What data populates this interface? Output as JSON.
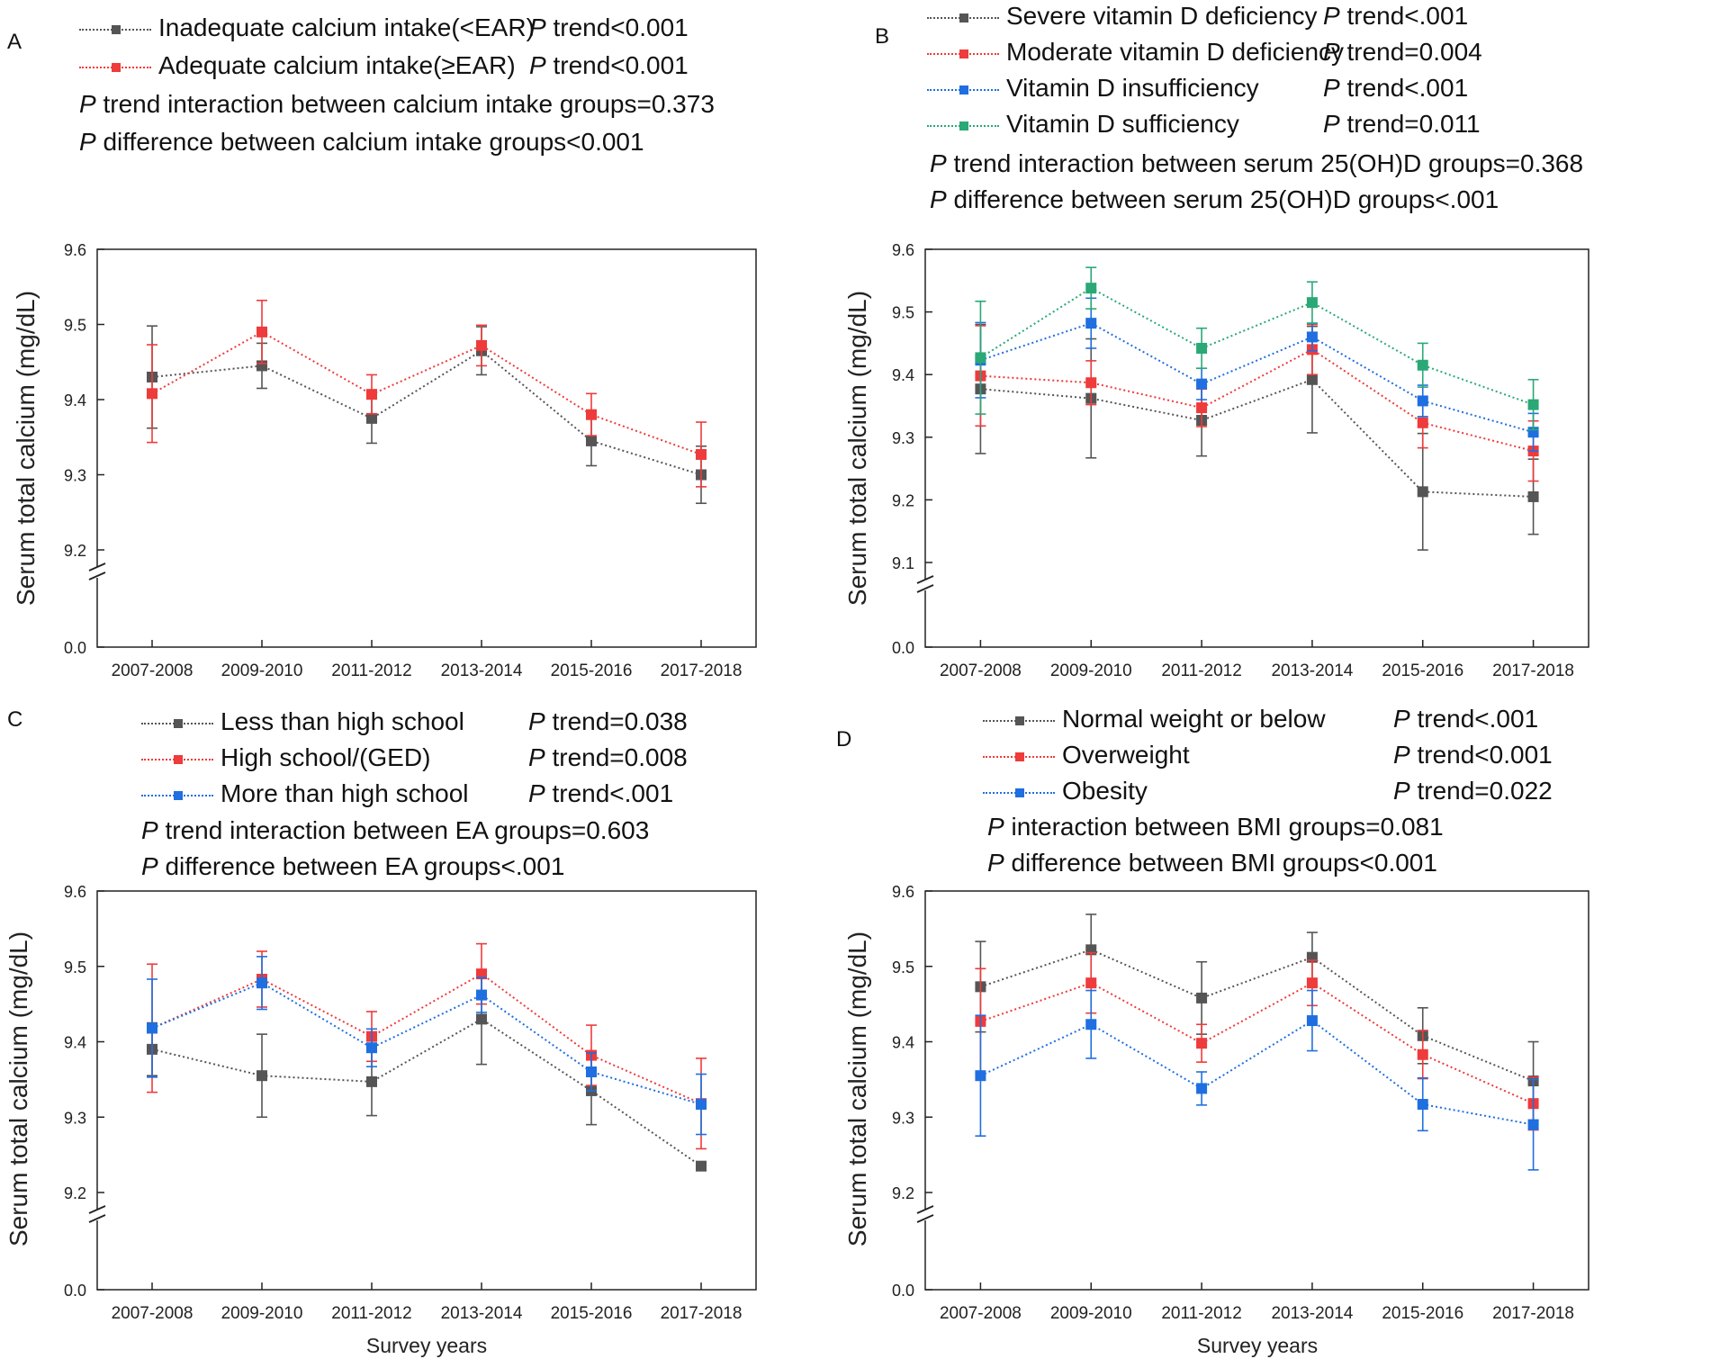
{
  "common": {
    "ylabel": "Serum total calcium (mg/dL)",
    "xlabel": "Survey years",
    "p_symbol": "P",
    "zero_label": "0.0"
  },
  "chart_data": [
    {
      "id": "A",
      "type": "line",
      "panel_letter": "A",
      "categories": [
        "2007-2008",
        "2009-2010",
        "2011-2012",
        "2013-2014",
        "2015-2016",
        "2017-2018"
      ],
      "ylim": [
        9.2,
        9.6
      ],
      "yticks": [
        "9.2",
        "9.3",
        "9.4",
        "9.5",
        "9.6"
      ],
      "ylabel": "Serum total calcium (mg/dL)",
      "xlabel": "",
      "series": [
        {
          "name": "Inadequate calcium intake(<EAR)",
          "p_text": " trend<0.001",
          "color": "#555555",
          "values": [
            9.43,
            9.445,
            9.375,
            9.465,
            9.345,
            9.3
          ],
          "errors": [
            0.068,
            0.03,
            0.033,
            0.032,
            0.033,
            0.038
          ]
        },
        {
          "name": "Adequate calcium intake(≥EAR)",
          "p_text": " trend<0.001",
          "color": "#ee3b3b",
          "values": [
            9.408,
            9.49,
            9.407,
            9.472,
            9.38,
            9.327
          ],
          "errors": [
            0.065,
            0.042,
            0.026,
            0.027,
            0.028,
            0.043
          ]
        }
      ],
      "notes": [
        " trend interaction between calcium intake groups=0.373",
        " difference between calcium intake groups<0.001"
      ]
    },
    {
      "id": "B",
      "type": "line",
      "panel_letter": "B",
      "categories": [
        "2007-2008",
        "2009-2010",
        "2011-2012",
        "2013-2014",
        "2015-2016",
        "2017-2018"
      ],
      "ylim": [
        9.1,
        9.6
      ],
      "yticks": [
        "9.1",
        "9.2",
        "9.3",
        "9.4",
        "9.5",
        "9.6"
      ],
      "ylabel": "Serum total calcium (mg/dL)",
      "xlabel": "",
      "series": [
        {
          "name": "Severe vitamin D deficiency",
          "p_text": " trend<.001",
          "color": "#555555",
          "values": [
            9.377,
            9.362,
            9.327,
            9.392,
            9.213,
            9.205
          ],
          "errors": [
            0.103,
            0.095,
            0.057,
            0.085,
            0.093,
            0.06
          ]
        },
        {
          "name": "Moderate vitamin D deficiency",
          "p_text": " trend=0.004",
          "color": "#ee3b3b",
          "values": [
            9.398,
            9.387,
            9.347,
            9.44,
            9.323,
            9.278
          ],
          "errors": [
            0.08,
            0.035,
            0.03,
            0.04,
            0.04,
            0.048
          ]
        },
        {
          "name": "Vitamin D insufficiency",
          "p_text": " trend<.001",
          "color": "#1f6fe0",
          "values": [
            9.423,
            9.482,
            9.385,
            9.46,
            9.358,
            9.308
          ],
          "errors": [
            0.06,
            0.04,
            0.025,
            0.022,
            0.025,
            0.03
          ]
        },
        {
          "name": "Vitamin D sufficiency",
          "p_text": " trend=0.011",
          "color": "#2aa876",
          "values": [
            9.427,
            9.538,
            9.442,
            9.515,
            9.415,
            9.352
          ],
          "errors": [
            0.09,
            0.033,
            0.032,
            0.033,
            0.035,
            0.04
          ]
        }
      ],
      "notes": [
        " trend interaction between serum 25(OH)D groups=0.368",
        " difference between serum 25(OH)D groups<.001"
      ]
    },
    {
      "id": "C",
      "type": "line",
      "panel_letter": "C",
      "categories": [
        "2007-2008",
        "2009-2010",
        "2011-2012",
        "2013-2014",
        "2015-2016",
        "2017-2018"
      ],
      "ylim": [
        9.2,
        9.6
      ],
      "yticks": [
        "9.2",
        "9.3",
        "9.4",
        "9.5",
        "9.6"
      ],
      "ylabel": "Serum total calcium (mg/dL)",
      "xlabel": "Survey years",
      "series": [
        {
          "name": "Less than high school",
          "p_text": " trend=0.038",
          "color": "#555555",
          "values": [
            9.39,
            9.355,
            9.347,
            9.43,
            9.335,
            9.235
          ],
          "errors": [
            0.035,
            0.055,
            0.045,
            0.06,
            0.045,
            0.0
          ]
        },
        {
          "name": "High school/(GED)",
          "p_text": " trend=0.008",
          "color": "#ee3b3b",
          "values": [
            9.418,
            9.483,
            9.407,
            9.49,
            9.382,
            9.318
          ],
          "errors": [
            0.085,
            0.037,
            0.033,
            0.04,
            0.04,
            0.06
          ]
        },
        {
          "name": "More than high school",
          "p_text": " trend<.001",
          "color": "#1f6fe0",
          "values": [
            9.418,
            9.478,
            9.392,
            9.462,
            9.36,
            9.317
          ],
          "errors": [
            0.065,
            0.035,
            0.025,
            0.023,
            0.025,
            0.04
          ]
        }
      ],
      "notes": [
        " trend interaction between EA groups=0.603",
        " difference between EA groups<.001"
      ]
    },
    {
      "id": "D",
      "type": "line",
      "panel_letter": "D",
      "categories": [
        "2007-2008",
        "2009-2010",
        "2011-2012",
        "2013-2014",
        "2015-2016",
        "2017-2018"
      ],
      "ylim": [
        9.2,
        9.6
      ],
      "yticks": [
        "9.2",
        "9.3",
        "9.4",
        "9.5",
        "9.6"
      ],
      "ylabel": "Serum total calcium (mg/dL)",
      "xlabel": "Survey years",
      "series": [
        {
          "name": "Normal weight or below",
          "p_text": " trend<.001",
          "color": "#555555",
          "values": [
            9.473,
            9.522,
            9.458,
            9.512,
            9.408,
            9.348
          ],
          "errors": [
            0.06,
            0.047,
            0.048,
            0.033,
            0.037,
            0.052
          ]
        },
        {
          "name": "Overweight",
          "p_text": " trend<0.001",
          "color": "#ee3b3b",
          "values": [
            9.427,
            9.478,
            9.398,
            9.478,
            9.383,
            9.318
          ],
          "errors": [
            0.07,
            0.04,
            0.025,
            0.03,
            0.032,
            0.035
          ]
        },
        {
          "name": "Obesity",
          "p_text": " trend=0.022",
          "color": "#1f6fe0",
          "values": [
            9.355,
            9.423,
            9.338,
            9.428,
            9.317,
            9.29
          ],
          "errors": [
            0.08,
            0.045,
            0.022,
            0.04,
            0.035,
            0.06
          ]
        }
      ],
      "notes": [
        " interaction between BMI groups=0.081",
        " difference between BMI groups<0.001"
      ]
    }
  ]
}
